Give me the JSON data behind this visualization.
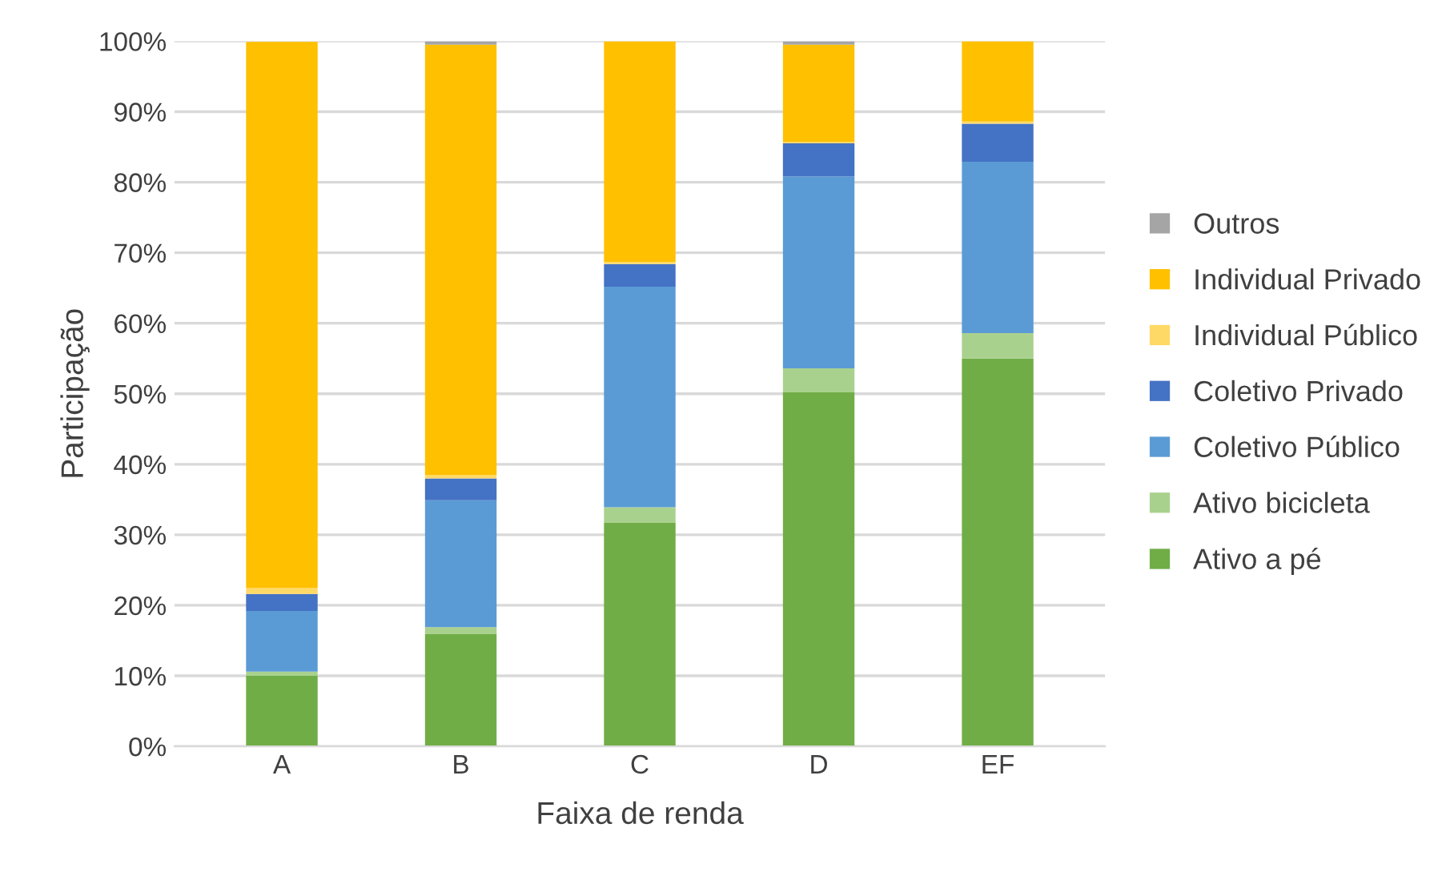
{
  "chart_data": {
    "type": "bar",
    "stacked": true,
    "xlabel": "Faixa de renda",
    "ylabel": "Participação",
    "categories": [
      "A",
      "B",
      "C",
      "D",
      "EF"
    ],
    "series": [
      {
        "name": "Ativo a pé",
        "color": "#70ad47",
        "values": [
          10.0,
          15.9,
          31.7,
          50.2,
          55.0
        ]
      },
      {
        "name": "Ativo bicicleta",
        "color": "#a9d18e",
        "values": [
          0.6,
          1.0,
          2.2,
          3.4,
          3.6
        ]
      },
      {
        "name": "Coletivo Público",
        "color": "#5b9bd5",
        "values": [
          8.6,
          18.0,
          31.3,
          27.2,
          24.3
        ]
      },
      {
        "name": "Coletivo Privado",
        "color": "#4472c4",
        "values": [
          2.4,
          3.1,
          3.2,
          4.7,
          5.4
        ]
      },
      {
        "name": "Individual Público",
        "color": "#ffd966",
        "values": [
          0.9,
          0.5,
          0.3,
          0.2,
          0.3
        ]
      },
      {
        "name": "Individual Privado",
        "color": "#ffc000",
        "values": [
          77.4,
          61.0,
          31.3,
          13.8,
          11.4
        ]
      },
      {
        "name": "Outros",
        "color": "#a5a5a5",
        "values": [
          null,
          0.5,
          null,
          0.5,
          null
        ]
      }
    ],
    "ylim": [
      0,
      100
    ],
    "yticks": [
      {
        "value": 0,
        "label": "0%"
      },
      {
        "value": 10,
        "label": "10%"
      },
      {
        "value": 20,
        "label": "20%"
      },
      {
        "value": 30,
        "label": "30%"
      },
      {
        "value": 40,
        "label": "40%"
      },
      {
        "value": 50,
        "label": "50%"
      },
      {
        "value": 60,
        "label": "60%"
      },
      {
        "value": 70,
        "label": "70%"
      },
      {
        "value": 80,
        "label": "80%"
      },
      {
        "value": 90,
        "label": "90%"
      },
      {
        "value": 100,
        "label": "100%"
      }
    ],
    "grid": "y",
    "legend": "right"
  }
}
